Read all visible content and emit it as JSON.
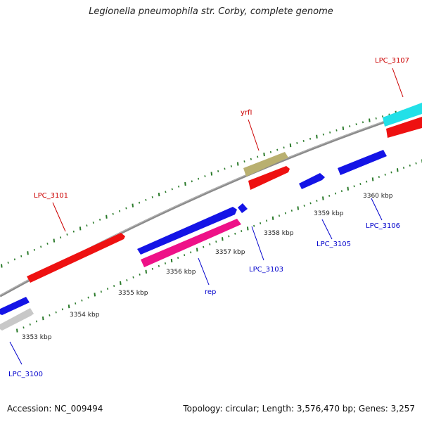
{
  "title": "Legionella pneumophila str. Corby, complete genome",
  "footer": {
    "accession": "Accession: NC_009494",
    "summary": "Topology: circular; Length: 3,576,470 bp; Genes: 3,257"
  },
  "colors": {
    "backbone": "#8a8a8a",
    "tick": "#2a7a2a",
    "forward_label": "#cc0000",
    "reverse_label": "#0000cc",
    "blue_feature": "#1414e6",
    "red_feature": "#ee1111",
    "pink_feature": "#ee1188",
    "khaki_feature": "#b9b070",
    "cyan_feature": "#22e0e8",
    "gray_feature": "#c8c8c8"
  },
  "scale_labels": [
    "3353 kbp",
    "3354 kbp",
    "3355 kbp",
    "3356 kbp",
    "3357 kbp",
    "3358 kbp",
    "3359 kbp",
    "3360 kbp"
  ],
  "gene_labels": [
    {
      "text": "LPC_3100",
      "strand": "reverse"
    },
    {
      "text": "LPC_3101",
      "strand": "forward"
    },
    {
      "text": "rep",
      "strand": "reverse"
    },
    {
      "text": "LPC_3103",
      "strand": "reverse"
    },
    {
      "text": "yrfI",
      "strand": "forward"
    },
    {
      "text": "LPC_3105",
      "strand": "reverse"
    },
    {
      "text": "LPC_3106",
      "strand": "reverse"
    },
    {
      "text": "LPC_3107",
      "strand": "forward"
    }
  ]
}
